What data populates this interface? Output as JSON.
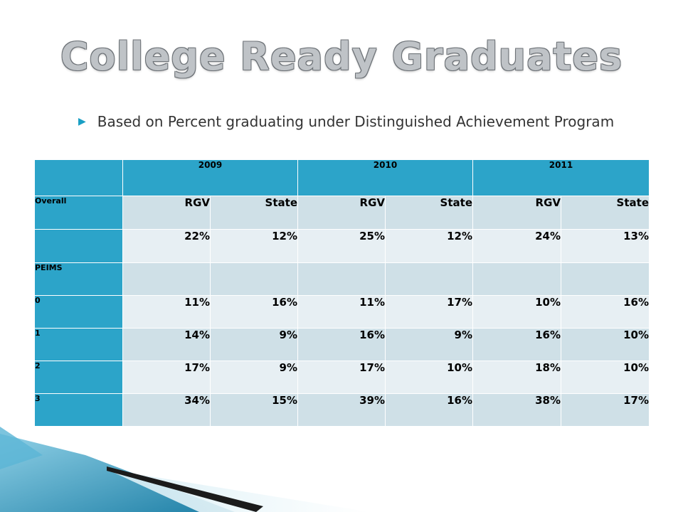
{
  "slide": {
    "title": "College Ready Graduates",
    "subtitle": "Based on Percent graduating under Distinguished Achievement Program",
    "bullet_icon": "triangle-bullet-icon",
    "accent_color": "#2ca4c9"
  },
  "table": {
    "years": [
      "2009",
      "2010",
      "2011"
    ],
    "rows": [
      {
        "label": "Overall",
        "cells": [
          "RGV",
          "State",
          "RGV",
          "State",
          "RGV",
          "State"
        ]
      },
      {
        "label": "",
        "cells": [
          "22%",
          "12%",
          "25%",
          "12%",
          "24%",
          "13%"
        ]
      },
      {
        "label": "PEIMS",
        "cells": [
          "",
          "",
          "",
          "",
          "",
          ""
        ]
      },
      {
        "label": "0",
        "cells": [
          "11%",
          "16%",
          "11%",
          "17%",
          "10%",
          "16%"
        ]
      },
      {
        "label": "1",
        "cells": [
          "14%",
          "9%",
          "16%",
          "9%",
          "16%",
          "10%"
        ]
      },
      {
        "label": "2",
        "cells": [
          "17%",
          "9%",
          "17%",
          "10%",
          "18%",
          "10%"
        ]
      },
      {
        "label": "3",
        "cells": [
          "34%",
          "15%",
          "39%",
          "16%",
          "38%",
          "17%"
        ]
      }
    ]
  }
}
